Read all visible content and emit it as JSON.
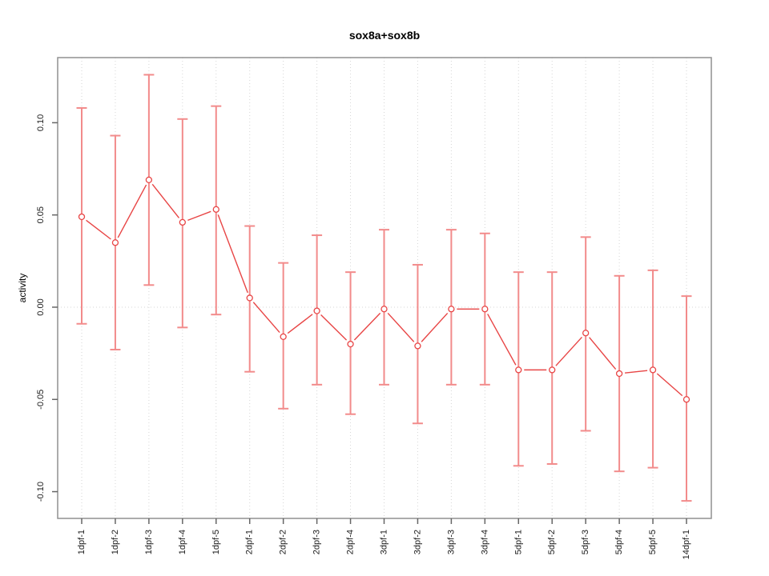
{
  "window": {
    "background": "#ffffff"
  },
  "chart_data": {
    "type": "line",
    "title": "sox8a+sox8b",
    "xlabel": "",
    "ylabel": "activity",
    "legend": "none",
    "categories": [
      "1dpf-1",
      "1dpf-2",
      "1dpf-3",
      "1dpf-4",
      "1dpf-5",
      "2dpf-1",
      "2dpf-2",
      "2dpf-3",
      "2dpf-4",
      "3dpf-1",
      "3dpf-2",
      "3dpf-3",
      "3dpf-4",
      "5dpf-1",
      "5dpf-2",
      "5dpf-3",
      "5dpf-4",
      "5dpf-5",
      "14dpf-1"
    ],
    "series": [
      {
        "name": "sox8a+sox8b activity",
        "marker": "open-circle",
        "values": [
          0.049,
          0.035,
          0.069,
          0.046,
          0.053,
          0.005,
          -0.016,
          -0.002,
          -0.02,
          -0.001,
          -0.021,
          -0.001,
          -0.001,
          -0.034,
          -0.034,
          -0.014,
          -0.036,
          -0.034,
          -0.05
        ],
        "error_low": [
          -0.009,
          -0.023,
          0.012,
          -0.011,
          -0.004,
          -0.035,
          -0.055,
          -0.042,
          -0.058,
          -0.042,
          -0.063,
          -0.042,
          -0.042,
          -0.086,
          -0.085,
          -0.067,
          -0.089,
          -0.087,
          -0.105
        ],
        "error_high": [
          0.108,
          0.093,
          0.126,
          0.102,
          0.109,
          0.044,
          0.024,
          0.039,
          0.019,
          0.042,
          0.023,
          0.042,
          0.04,
          0.019,
          0.019,
          0.038,
          0.017,
          0.02,
          0.006
        ]
      }
    ],
    "ylim": [
      -0.1145,
      0.1353
    ],
    "yticks": [
      -0.1,
      -0.05,
      0.0,
      0.05,
      0.1
    ],
    "ytick_labels": [
      "-0.10",
      "-0.05",
      "0.00",
      "0.05",
      "0.10"
    ],
    "grid": {
      "vertical": "dotted line at every category",
      "horizontal": "dotted line at y=0 only",
      "style": "dotted"
    },
    "colors": {
      "series_line": "#e84545",
      "marker_stroke": "#e84545",
      "marker_fill": "#ffffff",
      "error_bar": "#f28b8b",
      "grid_line": "#d6d6d6",
      "frame": "#909090",
      "tick": "#666666",
      "label_text": "#1a1a1a",
      "background": "#ffffff"
    }
  }
}
